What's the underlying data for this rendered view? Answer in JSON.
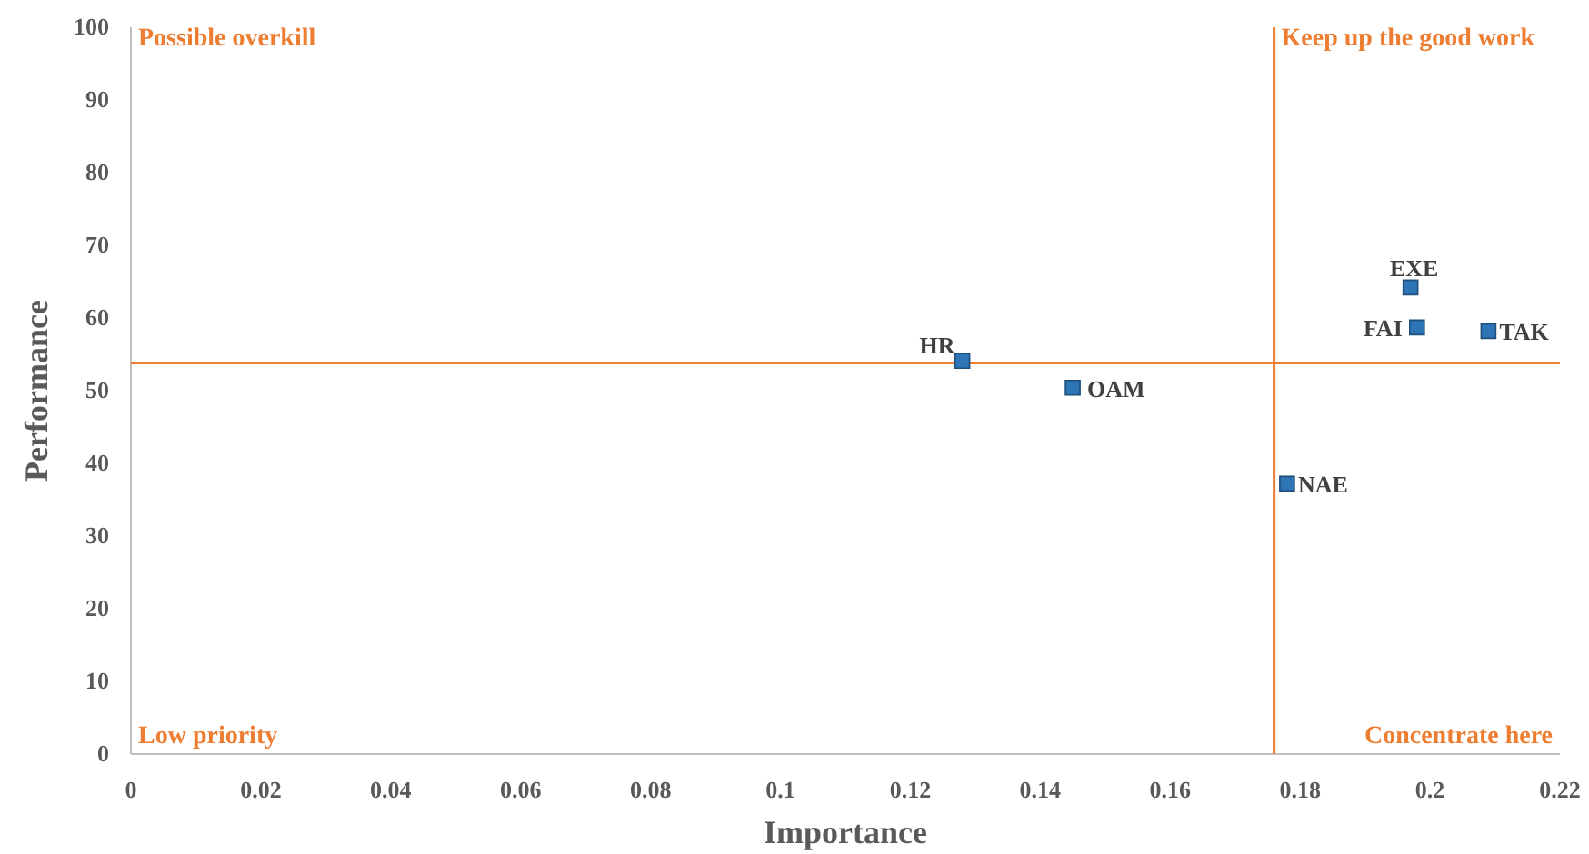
{
  "chart_data": {
    "type": "scatter",
    "xlabel": "Importance",
    "ylabel": "Performance",
    "xlim": [
      0,
      0.22
    ],
    "ylim": [
      0,
      100
    ],
    "xticks": [
      0,
      0.02,
      0.04,
      0.06,
      0.08,
      0.1,
      0.12,
      0.14,
      0.16,
      0.18,
      0.2,
      0.22
    ],
    "yticks": [
      0,
      10,
      20,
      30,
      40,
      50,
      60,
      70,
      80,
      90,
      100
    ],
    "grid": false,
    "marker": "square",
    "series": [
      {
        "color": "#2e75b6",
        "x": [
          0.128,
          0.145,
          0.178,
          0.197,
          0.198,
          0.209
        ],
        "values": [
          54.1,
          50.4,
          37.2,
          64.2,
          58.7,
          58.2
        ]
      }
    ],
    "ref_lines": [
      {
        "axis": "x",
        "value": 0.176,
        "color": "#ed7d31"
      },
      {
        "axis": "y",
        "value": 53.8,
        "color": "#ed7d31"
      }
    ],
    "annotations": [
      "Possible overkill",
      "Keep up  the good work",
      "Low priority",
      "Concentrate here",
      {
        "text": "HR",
        "x": 0.128,
        "y": 54.1
      },
      {
        "text": "OAM",
        "x": 0.145,
        "y": 50.4
      },
      {
        "text": "NAE",
        "x": 0.178,
        "y": 37.2
      },
      {
        "text": "EXE",
        "x": 0.197,
        "y": 64.2
      },
      {
        "text": "FAI",
        "x": 0.198,
        "y": 58.7
      },
      {
        "text": "TAK",
        "x": 0.209,
        "y": 58.2
      }
    ]
  }
}
